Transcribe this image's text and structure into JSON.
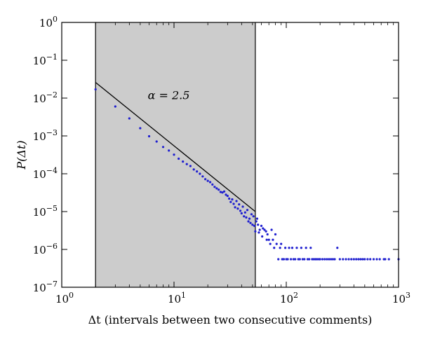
{
  "chart_data": {
    "type": "scatter",
    "title": "",
    "xlabel": "Δt (intervals between two consecutive comments)",
    "ylabel": "P(Δt)",
    "x_scale": "log",
    "y_scale": "log",
    "xlim": [
      1,
      1000
    ],
    "ylim": [
      1e-07,
      1
    ],
    "grid": false,
    "legend": "none",
    "x_ticks": [
      {
        "value": 1,
        "base": "10",
        "exp": "0"
      },
      {
        "value": 10,
        "base": "10",
        "exp": "1"
      },
      {
        "value": 100,
        "base": "10",
        "exp": "2"
      },
      {
        "value": 1000,
        "base": "10",
        "exp": "3"
      }
    ],
    "y_ticks": [
      {
        "value": 1,
        "base": "10",
        "exp": "0"
      },
      {
        "value": 0.1,
        "base": "10",
        "exp": "−1"
      },
      {
        "value": 0.01,
        "base": "10",
        "exp": "−2"
      },
      {
        "value": 0.001,
        "base": "10",
        "exp": "−3"
      },
      {
        "value": 0.0001,
        "base": "10",
        "exp": "−4"
      },
      {
        "value": 1e-05,
        "base": "10",
        "exp": "−5"
      },
      {
        "value": 1e-06,
        "base": "10",
        "exp": "−6"
      },
      {
        "value": 1e-07,
        "base": "10",
        "exp": "−7"
      }
    ],
    "shaded_region": {
      "x_from": 2,
      "x_to": 53,
      "color": "#cccccc"
    },
    "fit_line": {
      "x": [
        2,
        53
      ],
      "y": [
        0.026,
        1e-05
      ],
      "slope_label": "α = 2.5",
      "color": "#000000"
    },
    "annotations": [
      {
        "text": "α = 2.5",
        "x": 8,
        "y": 0.012
      }
    ],
    "series": [
      {
        "color": "#1f1fcf",
        "points": [
          [
            2,
            0.017
          ],
          [
            3,
            0.006
          ],
          [
            4,
            0.0029
          ],
          [
            5,
            0.0016
          ],
          [
            6,
            0.00098
          ],
          [
            7,
            0.00071
          ],
          [
            8,
            0.00051
          ],
          [
            9,
            0.00041
          ],
          [
            10,
            0.00032
          ],
          [
            11,
            0.00025
          ],
          [
            12,
            0.00021
          ],
          [
            13,
            0.00018
          ],
          [
            14,
            0.00016
          ],
          [
            15,
            0.00013
          ],
          [
            16,
            0.000115
          ],
          [
            17,
            0.0001
          ],
          [
            18,
            8.5e-05
          ],
          [
            19,
            7.2e-05
          ],
          [
            20,
            6.5e-05
          ],
          [
            21,
            6e-05
          ],
          [
            22,
            5.2e-05
          ],
          [
            23,
            4.5e-05
          ],
          [
            24,
            4.1e-05
          ],
          [
            25,
            3.8e-05
          ],
          [
            26,
            3.3e-05
          ],
          [
            27,
            3.2e-05
          ],
          [
            28,
            3.4e-05
          ],
          [
            29,
            2.8e-05
          ],
          [
            30,
            2.6e-05
          ],
          [
            31,
            2.2e-05
          ],
          [
            32,
            1.8e-05
          ],
          [
            33,
            2.1e-05
          ],
          [
            34,
            1.6e-05
          ],
          [
            35,
            1.3e-05
          ],
          [
            36,
            1.9e-05
          ],
          [
            37,
            1.2e-05
          ],
          [
            38,
            1.55e-05
          ],
          [
            39,
            1.05e-05
          ],
          [
            40,
            9e-06
          ],
          [
            41,
            1.35e-05
          ],
          [
            42,
            7.5e-06
          ],
          [
            43,
            9.5e-06
          ],
          [
            44,
            7e-06
          ],
          [
            45,
            1.1e-05
          ],
          [
            46,
            5.5e-06
          ],
          [
            47,
            6.5e-06
          ],
          [
            48,
            5e-06
          ],
          [
            49,
            8.5e-06
          ],
          [
            50,
            4.5e-06
          ],
          [
            51,
            7.5e-06
          ],
          [
            52,
            4.2e-06
          ],
          [
            53,
            3e-06
          ],
          [
            54,
            5.5e-06
          ],
          [
            55,
            6.5e-06
          ],
          [
            56,
            4.5e-06
          ],
          [
            57,
            2.8e-06
          ],
          [
            58,
            3.3e-06
          ],
          [
            60,
            4.2e-06
          ],
          [
            61,
            2.2e-06
          ],
          [
            62,
            3.6e-06
          ],
          [
            64,
            3.3e-06
          ],
          [
            66,
            3e-06
          ],
          [
            67,
            1.8e-06
          ],
          [
            68,
            2.5e-06
          ],
          [
            70,
            1.8e-06
          ],
          [
            72,
            1.4e-06
          ],
          [
            74,
            3.3e-06
          ],
          [
            76,
            1.8e-06
          ],
          [
            78,
            1.1e-06
          ],
          [
            80,
            2.5e-06
          ],
          [
            82,
            1.4e-06
          ],
          [
            85,
            5.5e-07
          ],
          [
            88,
            1.1e-06
          ],
          [
            90,
            1.4e-06
          ],
          [
            92,
            5.5e-07
          ],
          [
            95,
            5.5e-07
          ],
          [
            98,
            1.1e-06
          ],
          [
            100,
            5.5e-07
          ],
          [
            103,
            5.5e-07
          ],
          [
            106,
            1.1e-06
          ],
          [
            110,
            5.5e-07
          ],
          [
            113,
            1.1e-06
          ],
          [
            116,
            5.5e-07
          ],
          [
            120,
            5.5e-07
          ],
          [
            124,
            1.1e-06
          ],
          [
            128,
            5.5e-07
          ],
          [
            132,
            5.5e-07
          ],
          [
            136,
            1.1e-06
          ],
          [
            140,
            5.5e-07
          ],
          [
            145,
            5.5e-07
          ],
          [
            150,
            1.1e-06
          ],
          [
            155,
            5.5e-07
          ],
          [
            160,
            5.5e-07
          ],
          [
            165,
            1.1e-06
          ],
          [
            170,
            5.5e-07
          ],
          [
            176,
            5.5e-07
          ],
          [
            182,
            5.5e-07
          ],
          [
            188,
            5.5e-07
          ],
          [
            195,
            5.5e-07
          ],
          [
            200,
            5.5e-07
          ],
          [
            210,
            5.5e-07
          ],
          [
            220,
            5.5e-07
          ],
          [
            230,
            5.5e-07
          ],
          [
            240,
            5.5e-07
          ],
          [
            250,
            5.5e-07
          ],
          [
            260,
            5.5e-07
          ],
          [
            270,
            5.5e-07
          ],
          [
            285,
            1.1e-06
          ],
          [
            300,
            5.5e-07
          ],
          [
            320,
            5.5e-07
          ],
          [
            340,
            5.5e-07
          ],
          [
            360,
            5.5e-07
          ],
          [
            380,
            5.5e-07
          ],
          [
            400,
            5.5e-07
          ],
          [
            420,
            5.5e-07
          ],
          [
            440,
            5.5e-07
          ],
          [
            460,
            5.5e-07
          ],
          [
            480,
            5.5e-07
          ],
          [
            500,
            5.5e-07
          ],
          [
            530,
            5.5e-07
          ],
          [
            560,
            5.5e-07
          ],
          [
            600,
            5.5e-07
          ],
          [
            640,
            5.5e-07
          ],
          [
            680,
            5.5e-07
          ],
          [
            740,
            5.5e-07
          ],
          [
            760,
            5.5e-07
          ],
          [
            820,
            5.5e-07
          ],
          [
            1000,
            5.5e-07
          ]
        ]
      }
    ]
  }
}
